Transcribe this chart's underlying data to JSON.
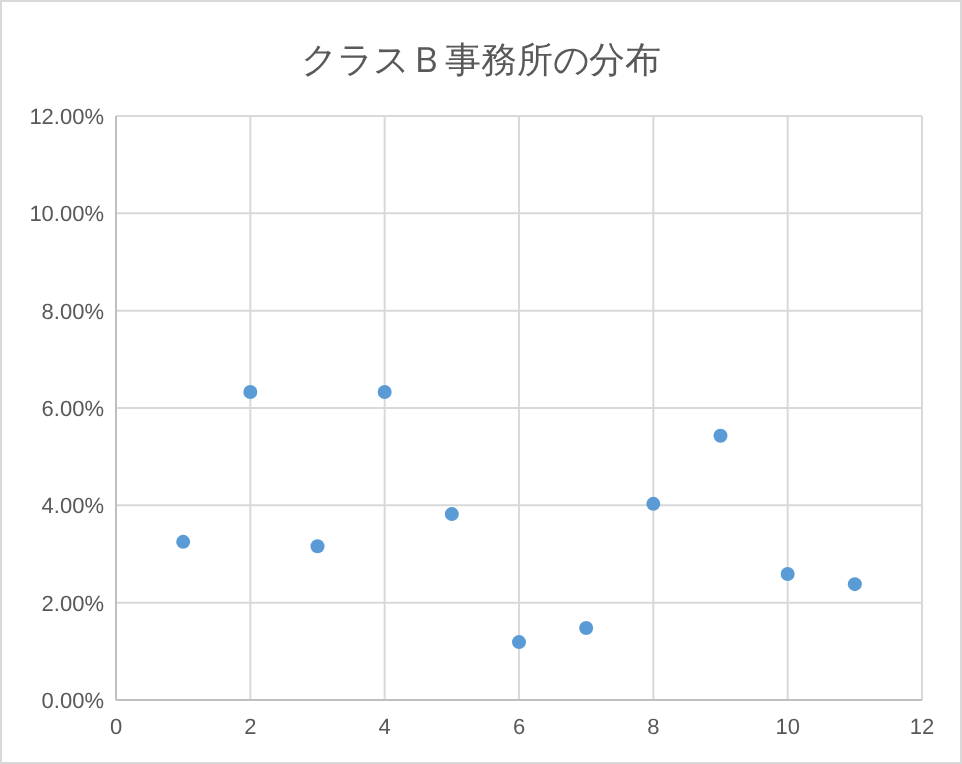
{
  "chart_data": {
    "type": "scatter",
    "title": "クラスＢ事務所の分布",
    "x": [
      1,
      2,
      3,
      4,
      5,
      6,
      7,
      8,
      9,
      10,
      11
    ],
    "series": [
      {
        "color": "#5b9bd5",
        "values": [
          3.25,
          6.33,
          3.16,
          6.33,
          3.82,
          1.19,
          1.48,
          4.03,
          5.43,
          2.59,
          2.38
        ]
      }
    ],
    "xlim": [
      0,
      12
    ],
    "xticks": [
      0,
      2,
      4,
      6,
      8,
      10,
      12
    ],
    "ylim": [
      0,
      12
    ],
    "yticks": [
      {
        "value": 0,
        "label": "0.00%"
      },
      {
        "value": 2,
        "label": "2.00%"
      },
      {
        "value": 4,
        "label": "4.00%"
      },
      {
        "value": 6,
        "label": "6.00%"
      },
      {
        "value": 8,
        "label": "8.00%"
      },
      {
        "value": 10,
        "label": "10.00%"
      },
      {
        "value": 12,
        "label": "12.00%"
      }
    ],
    "grid": true,
    "marker": "circle"
  }
}
